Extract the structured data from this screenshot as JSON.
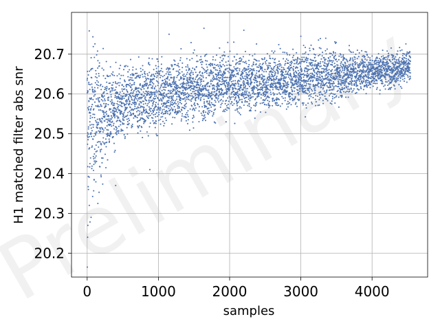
{
  "chart_data": {
    "type": "scatter",
    "xlabel": "samples",
    "ylabel": "H1 matched filter abs snr",
    "xlim": [
      -220,
      4780
    ],
    "ylim": [
      20.14,
      20.805
    ],
    "xticks": [
      0,
      1000,
      2000,
      3000,
      4000
    ],
    "xtick_labels": [
      "0",
      "1000",
      "2000",
      "3000",
      "4000"
    ],
    "yticks": [
      20.2,
      20.3,
      20.4,
      20.5,
      20.6,
      20.7
    ],
    "ytick_labels": [
      "20.2",
      "20.3",
      "20.4",
      "20.5",
      "20.6",
      "20.7"
    ],
    "grid": true,
    "n_samples": 4540,
    "marker_color": "#4c72b0",
    "watermark": "Preliminary",
    "series": [
      {
        "trend": [
          {
            "x": 0,
            "y": 20.53
          },
          {
            "x": 500,
            "y": 20.575
          },
          {
            "x": 1000,
            "y": 20.6
          },
          {
            "x": 1500,
            "y": 20.615
          },
          {
            "x": 2000,
            "y": 20.625
          },
          {
            "x": 2500,
            "y": 20.63
          },
          {
            "x": 3000,
            "y": 20.64
          },
          {
            "x": 3500,
            "y": 20.648
          },
          {
            "x": 4000,
            "y": 20.658
          },
          {
            "x": 4540,
            "y": 20.668
          }
        ],
        "outliers": [
          {
            "x": 2,
            "y": 20.165
          },
          {
            "x": 6,
            "y": 20.24
          },
          {
            "x": 10,
            "y": 20.27
          },
          {
            "x": 18,
            "y": 20.36
          },
          {
            "x": 30,
            "y": 20.32
          },
          {
            "x": 55,
            "y": 20.29
          },
          {
            "x": 150,
            "y": 20.325
          },
          {
            "x": 400,
            "y": 20.37
          },
          {
            "x": 880,
            "y": 20.41
          },
          {
            "x": 1150,
            "y": 20.75
          },
          {
            "x": 1640,
            "y": 20.765
          },
          {
            "x": 2200,
            "y": 20.76
          },
          {
            "x": 3000,
            "y": 20.745
          },
          {
            "x": 3350,
            "y": 20.74
          }
        ]
      }
    ]
  }
}
